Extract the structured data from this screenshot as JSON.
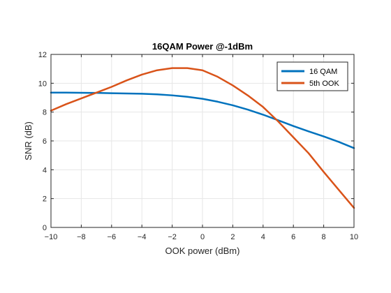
{
  "chart_data": {
    "type": "line",
    "title": "16QAM Power @-1dBm",
    "xlabel": "OOK power (dBm)",
    "ylabel": "SNR (dB)",
    "xlim": [
      -10,
      10
    ],
    "ylim": [
      0,
      12
    ],
    "xticks": [
      -10,
      -8,
      -6,
      -4,
      -2,
      0,
      2,
      4,
      6,
      8,
      10
    ],
    "yticks": [
      0,
      2,
      4,
      6,
      8,
      10,
      12
    ],
    "grid": true,
    "legend_position": "top-right",
    "series": [
      {
        "name": "16 QAM",
        "color": "#0072BD",
        "x": [
          -10,
          -9,
          -8,
          -7,
          -6,
          -5,
          -4,
          -3,
          -2,
          -1,
          0,
          1,
          2,
          3,
          4,
          5,
          6,
          7,
          8,
          9,
          10
        ],
        "y": [
          9.35,
          9.35,
          9.34,
          9.33,
          9.31,
          9.29,
          9.27,
          9.23,
          9.16,
          9.06,
          8.92,
          8.72,
          8.47,
          8.17,
          7.82,
          7.43,
          7.03,
          6.66,
          6.31,
          5.93,
          5.5
        ]
      },
      {
        "name": "5th OOK",
        "color": "#D95319",
        "x": [
          -10,
          -9,
          -8,
          -7,
          -6,
          -5,
          -4,
          -3,
          -2,
          -1,
          0,
          1,
          2,
          3,
          4,
          5,
          6,
          7,
          8,
          9,
          10
        ],
        "y": [
          8.1,
          8.55,
          8.95,
          9.35,
          9.75,
          10.2,
          10.6,
          10.9,
          11.05,
          11.05,
          10.9,
          10.45,
          9.85,
          9.15,
          8.35,
          7.35,
          6.25,
          5.15,
          3.85,
          2.6,
          1.35
        ]
      }
    ]
  }
}
